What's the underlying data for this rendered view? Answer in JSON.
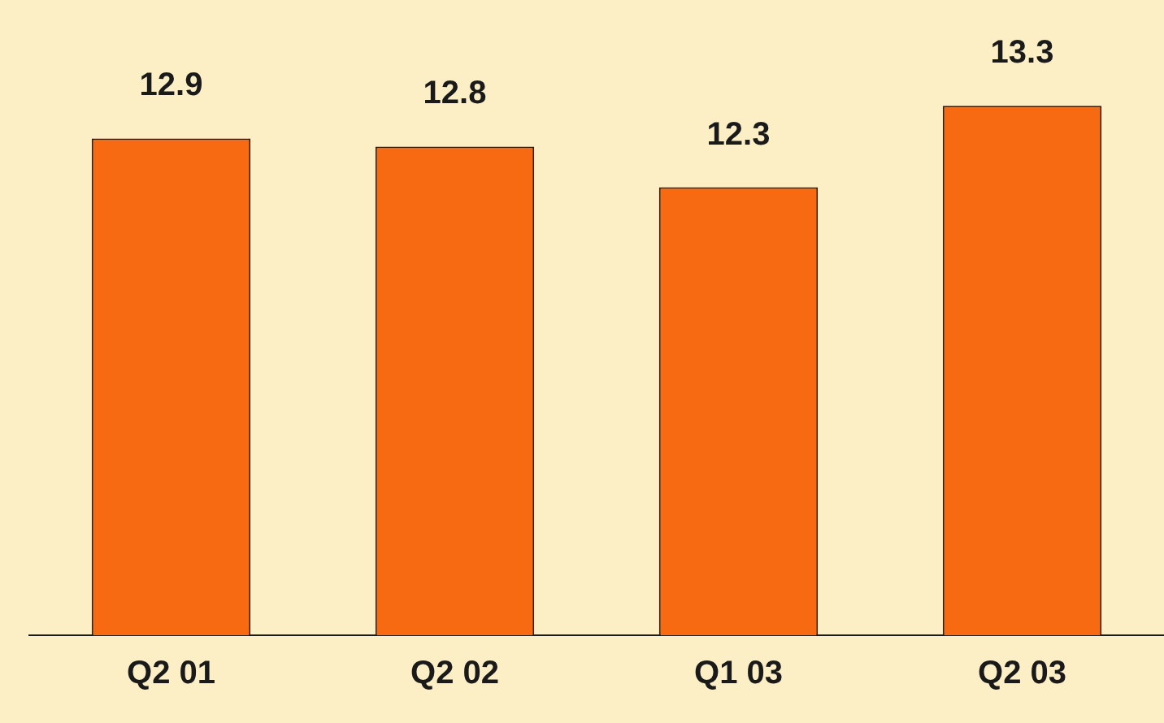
{
  "chart_data": {
    "type": "bar",
    "categories": [
      "Q2 01",
      "Q2 02",
      "Q1 03",
      "Q2 03"
    ],
    "values": [
      12.9,
      12.8,
      12.3,
      13.3
    ],
    "color": "#f86a12",
    "ylim": [
      6.8,
      14.6
    ],
    "data_labels": true,
    "grid": false,
    "legend": false
  }
}
